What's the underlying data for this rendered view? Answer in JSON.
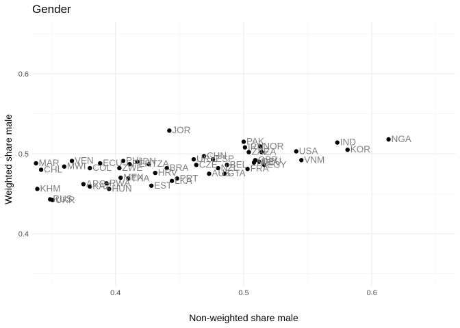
{
  "chart_data": {
    "type": "scatter",
    "title": "Gender",
    "xlabel": "Non-weighted share male",
    "ylabel": "Weighted share male",
    "xlim": [
      0.335,
      0.665
    ],
    "ylim": [
      0.335,
      0.665
    ],
    "x_ticks": [
      0.4,
      0.5,
      0.6
    ],
    "y_ticks": [
      0.4,
      0.5,
      0.6
    ],
    "x_tick_labels": [
      "0.4",
      "0.5",
      "0.6"
    ],
    "y_tick_labels": [
      "0.4",
      "0.5",
      "0.6"
    ],
    "grid": true,
    "points": [
      {
        "label": "NGA",
        "x": 0.613,
        "y": 0.518
      },
      {
        "label": "IND",
        "x": 0.573,
        "y": 0.514
      },
      {
        "label": "KOR",
        "x": 0.581,
        "y": 0.505
      },
      {
        "label": "USA",
        "x": 0.541,
        "y": 0.503
      },
      {
        "label": "VNM",
        "x": 0.545,
        "y": 0.492
      },
      {
        "label": "JOR",
        "x": 0.442,
        "y": 0.529
      },
      {
        "label": "PAK",
        "x": 0.5,
        "y": 0.515
      },
      {
        "label": "IRN",
        "x": 0.501,
        "y": 0.508
      },
      {
        "label": "NOR",
        "x": 0.513,
        "y": 0.509
      },
      {
        "label": "ZAF",
        "x": 0.504,
        "y": 0.502
      },
      {
        "label": "ZA",
        "x": 0.514,
        "y": 0.502
      },
      {
        "label": "CHN",
        "x": 0.469,
        "y": 0.497
      },
      {
        "label": "ESP",
        "x": 0.476,
        "y": 0.493
      },
      {
        "label": "GBR",
        "x": 0.509,
        "y": 0.492
      },
      {
        "label": "DEU",
        "x": 0.512,
        "y": 0.49
      },
      {
        "label": "NLD",
        "x": 0.508,
        "y": 0.489
      },
      {
        "label": "EGY",
        "x": 0.516,
        "y": 0.486
      },
      {
        "label": "FRA",
        "x": 0.503,
        "y": 0.481
      },
      {
        "label": "AUS",
        "x": 0.473,
        "y": 0.475
      },
      {
        "label": "CZE",
        "x": 0.463,
        "y": 0.486
      },
      {
        "label": "NZL",
        "x": 0.48,
        "y": 0.482
      },
      {
        "label": "BEL",
        "x": 0.487,
        "y": 0.486
      },
      {
        "label": "GTA",
        "x": 0.485,
        "y": 0.475
      },
      {
        "label": "URY",
        "x": 0.461,
        "y": 0.493
      },
      {
        "label": "MAR",
        "x": 0.338,
        "y": 0.488
      },
      {
        "label": "CHL",
        "x": 0.342,
        "y": 0.48
      },
      {
        "label": "VEN",
        "x": 0.366,
        "y": 0.491
      },
      {
        "label": "MWI",
        "x": 0.36,
        "y": 0.484
      },
      {
        "label": "COL",
        "x": 0.38,
        "y": 0.482
      },
      {
        "label": "ECU",
        "x": 0.388,
        "y": 0.488
      },
      {
        "label": "PHL",
        "x": 0.406,
        "y": 0.491
      },
      {
        "label": "IDN",
        "x": 0.417,
        "y": 0.49
      },
      {
        "label": "PER",
        "x": 0.411,
        "y": 0.487
      },
      {
        "label": "ZWE",
        "x": 0.403,
        "y": 0.482
      },
      {
        "label": "TZA",
        "x": 0.426,
        "y": 0.487
      },
      {
        "label": "BRA",
        "x": 0.44,
        "y": 0.482
      },
      {
        "label": "HRV",
        "x": 0.431,
        "y": 0.476
      },
      {
        "label": "THA",
        "x": 0.41,
        "y": 0.469
      },
      {
        "label": "MEX",
        "x": 0.404,
        "y": 0.47
      },
      {
        "label": "RWA",
        "x": 0.393,
        "y": 0.463
      },
      {
        "label": "ARG",
        "x": 0.375,
        "y": 0.462
      },
      {
        "label": "KAZ",
        "x": 0.38,
        "y": 0.459
      },
      {
        "label": "HUN",
        "x": 0.395,
        "y": 0.456
      },
      {
        "label": "EST",
        "x": 0.428,
        "y": 0.46
      },
      {
        "label": "PRT",
        "x": 0.448,
        "y": 0.469
      },
      {
        "label": "LKA",
        "x": 0.444,
        "y": 0.466
      },
      {
        "label": "KHM",
        "x": 0.339,
        "y": 0.456
      },
      {
        "label": "RUS",
        "x": 0.349,
        "y": 0.443
      },
      {
        "label": "UKR",
        "x": 0.351,
        "y": 0.442
      }
    ]
  }
}
